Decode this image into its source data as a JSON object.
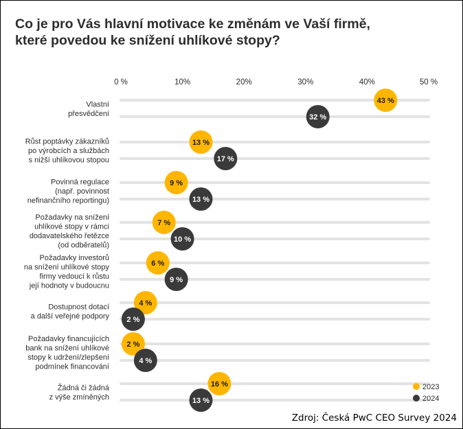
{
  "chart_data": {
    "type": "dot",
    "title": "Co je pro Vás hlavní motivace ke změnám ve Vaší firmě,\nkteré povedou ke snížení uhlíkové stopy?",
    "x_ticks": [
      "0 %",
      "10%",
      "20%",
      "30%",
      "40%",
      "50 %"
    ],
    "xlim": [
      0,
      50
    ],
    "unit_suffix": " %",
    "categories": [
      [
        "Vlastní",
        "přesvědčení"
      ],
      [
        "Růst poptávky zákazníků",
        "po výrobcích a službách",
        "s nižší uhlíkovou stopou"
      ],
      [
        "Povinná regulace",
        "(např. povinnost",
        "nefinančního reportingu)"
      ],
      [
        "Požadavky na snížení",
        "uhlíkové stopy v rámci",
        "dodavatelského řetězce",
        "(od odběratelů)"
      ],
      [
        "Požadavky investorů",
        "na snížení uhlíkové stopy",
        "firmy vedoucí k růstu",
        "její hodnoty v budoucnu"
      ],
      [
        "Dostupnost dotací",
        "a další veřejné podpory"
      ],
      [
        "Požadavky financujících",
        "bank na snížení uhlíkové",
        "stopy k udržení/zlepšení",
        "podmínek financování"
      ],
      [
        "Žádná či žádná",
        "z výše zmíněných"
      ]
    ],
    "series": [
      {
        "name": "2023",
        "color": "#ffb600",
        "label_color": "#1a1a1a",
        "values": [
          43,
          13,
          9,
          7,
          6,
          4,
          2,
          16
        ]
      },
      {
        "name": "2024",
        "color": "#3a3a3a",
        "label_color": "#ffffff",
        "values": [
          32,
          17,
          13,
          10,
          9,
          2,
          4,
          13
        ]
      }
    ],
    "legend_position": "bottom-right"
  },
  "source": "Zdroj: Česká PwC CEO Survey 2024"
}
